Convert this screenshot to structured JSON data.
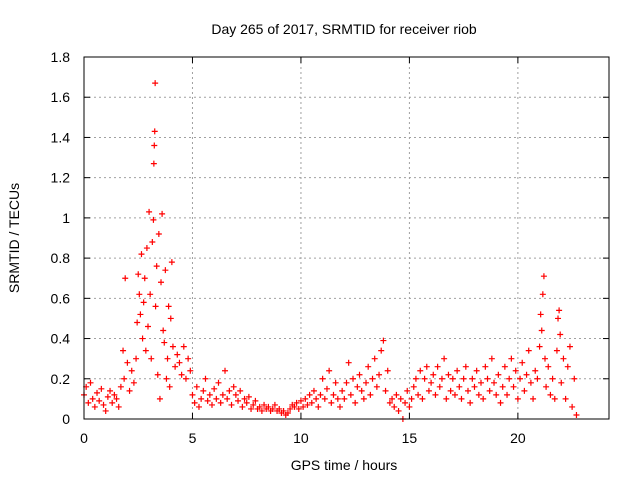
{
  "chart_data": {
    "type": "scatter",
    "title": "Day 265 of 2017, SRMTID for receiver riob",
    "xlabel": "GPS time / hours",
    "ylabel": "SRMTID / TECUs",
    "xlim": [
      0,
      24.2
    ],
    "ylim": [
      0,
      1.8
    ],
    "xticks": [
      0,
      5,
      10,
      15,
      20
    ],
    "yticks": [
      0,
      0.2,
      0.4,
      0.6,
      0.8,
      1,
      1.2,
      1.4,
      1.6,
      1.8
    ],
    "grid": true,
    "marker": "+",
    "color": "#ff0000",
    "series": [
      {
        "name": "SRMTID",
        "points": [
          [
            0.0,
            0.12
          ],
          [
            0.1,
            0.16
          ],
          [
            0.2,
            0.08
          ],
          [
            0.3,
            0.18
          ],
          [
            0.4,
            0.1
          ],
          [
            0.5,
            0.06
          ],
          [
            0.6,
            0.13
          ],
          [
            0.7,
            0.09
          ],
          [
            0.8,
            0.15
          ],
          [
            0.9,
            0.07
          ],
          [
            1.0,
            0.04
          ],
          [
            1.1,
            0.11
          ],
          [
            1.2,
            0.14
          ],
          [
            1.3,
            0.08
          ],
          [
            1.4,
            0.12
          ],
          [
            1.5,
            0.1
          ],
          [
            1.6,
            0.06
          ],
          [
            1.7,
            0.16
          ],
          [
            1.8,
            0.34
          ],
          [
            1.85,
            0.2
          ],
          [
            1.9,
            0.7
          ],
          [
            2.0,
            0.28
          ],
          [
            2.1,
            0.14
          ],
          [
            2.2,
            0.24
          ],
          [
            2.3,
            0.18
          ],
          [
            2.4,
            0.3
          ],
          [
            2.45,
            0.48
          ],
          [
            2.5,
            0.72
          ],
          [
            2.55,
            0.62
          ],
          [
            2.6,
            0.52
          ],
          [
            2.65,
            0.82
          ],
          [
            2.7,
            0.4
          ],
          [
            2.75,
            0.58
          ],
          [
            2.8,
            0.7
          ],
          [
            2.85,
            0.34
          ],
          [
            2.9,
            0.85
          ],
          [
            2.95,
            0.46
          ],
          [
            3.0,
            1.03
          ],
          [
            3.05,
            0.62
          ],
          [
            3.1,
            0.3
          ],
          [
            3.15,
            0.88
          ],
          [
            3.2,
            0.99
          ],
          [
            3.22,
            1.27
          ],
          [
            3.24,
            1.36
          ],
          [
            3.26,
            1.43
          ],
          [
            3.28,
            1.67
          ],
          [
            3.3,
            0.56
          ],
          [
            3.35,
            0.76
          ],
          [
            3.4,
            0.22
          ],
          [
            3.45,
            0.92
          ],
          [
            3.5,
            0.1
          ],
          [
            3.55,
            0.68
          ],
          [
            3.6,
            1.02
          ],
          [
            3.65,
            0.44
          ],
          [
            3.7,
            0.38
          ],
          [
            3.75,
            0.74
          ],
          [
            3.8,
            0.2
          ],
          [
            3.85,
            0.3
          ],
          [
            3.9,
            0.56
          ],
          [
            3.95,
            0.16
          ],
          [
            4.0,
            0.5
          ],
          [
            4.05,
            0.78
          ],
          [
            4.1,
            0.36
          ],
          [
            4.2,
            0.26
          ],
          [
            4.3,
            0.32
          ],
          [
            4.4,
            0.28
          ],
          [
            4.5,
            0.22
          ],
          [
            4.6,
            0.36
          ],
          [
            4.7,
            0.2
          ],
          [
            4.8,
            0.3
          ],
          [
            4.9,
            0.24
          ],
          [
            5.0,
            0.12
          ],
          [
            5.1,
            0.08
          ],
          [
            5.2,
            0.16
          ],
          [
            5.3,
            0.06
          ],
          [
            5.4,
            0.1
          ],
          [
            5.5,
            0.14
          ],
          [
            5.6,
            0.2
          ],
          [
            5.7,
            0.09
          ],
          [
            5.8,
            0.12
          ],
          [
            5.9,
            0.07
          ],
          [
            6.0,
            0.15
          ],
          [
            6.1,
            0.1
          ],
          [
            6.2,
            0.18
          ],
          [
            6.3,
            0.08
          ],
          [
            6.4,
            0.12
          ],
          [
            6.5,
            0.24
          ],
          [
            6.6,
            0.1
          ],
          [
            6.7,
            0.14
          ],
          [
            6.8,
            0.07
          ],
          [
            6.9,
            0.16
          ],
          [
            7.0,
            0.12
          ],
          [
            7.1,
            0.09
          ],
          [
            7.2,
            0.14
          ],
          [
            7.3,
            0.06
          ],
          [
            7.4,
            0.1
          ],
          [
            7.5,
            0.08
          ],
          [
            7.6,
            0.11
          ],
          [
            7.7,
            0.05
          ],
          [
            7.8,
            0.07
          ],
          [
            7.9,
            0.09
          ],
          [
            8.0,
            0.05
          ],
          [
            8.1,
            0.06
          ],
          [
            8.2,
            0.04
          ],
          [
            8.3,
            0.07
          ],
          [
            8.4,
            0.05
          ],
          [
            8.5,
            0.06
          ],
          [
            8.6,
            0.04
          ],
          [
            8.7,
            0.05
          ],
          [
            8.8,
            0.07
          ],
          [
            8.9,
            0.04
          ],
          [
            9.0,
            0.05
          ],
          [
            9.1,
            0.03
          ],
          [
            9.2,
            0.04
          ],
          [
            9.3,
            0.02
          ],
          [
            9.4,
            0.03
          ],
          [
            9.5,
            0.05
          ],
          [
            9.6,
            0.07
          ],
          [
            9.7,
            0.06
          ],
          [
            9.8,
            0.08
          ],
          [
            9.9,
            0.05
          ],
          [
            10.0,
            0.09
          ],
          [
            10.1,
            0.06
          ],
          [
            10.2,
            0.1
          ],
          [
            10.3,
            0.07
          ],
          [
            10.4,
            0.12
          ],
          [
            10.5,
            0.08
          ],
          [
            10.6,
            0.14
          ],
          [
            10.7,
            0.1
          ],
          [
            10.8,
            0.06
          ],
          [
            10.9,
            0.12
          ],
          [
            11.0,
            0.2
          ],
          [
            11.1,
            0.1
          ],
          [
            11.2,
            0.15
          ],
          [
            11.3,
            0.24
          ],
          [
            11.4,
            0.08
          ],
          [
            11.5,
            0.12
          ],
          [
            11.6,
            0.18
          ],
          [
            11.7,
            0.1
          ],
          [
            11.8,
            0.06
          ],
          [
            11.9,
            0.14
          ],
          [
            12.0,
            0.1
          ],
          [
            12.1,
            0.18
          ],
          [
            12.2,
            0.28
          ],
          [
            12.3,
            0.12
          ],
          [
            12.4,
            0.2
          ],
          [
            12.5,
            0.08
          ],
          [
            12.6,
            0.16
          ],
          [
            12.7,
            0.22
          ],
          [
            12.8,
            0.14
          ],
          [
            12.9,
            0.1
          ],
          [
            13.0,
            0.18
          ],
          [
            13.1,
            0.26
          ],
          [
            13.2,
            0.12
          ],
          [
            13.3,
            0.2
          ],
          [
            13.4,
            0.3
          ],
          [
            13.5,
            0.16
          ],
          [
            13.6,
            0.22
          ],
          [
            13.7,
            0.34
          ],
          [
            13.8,
            0.39
          ],
          [
            13.9,
            0.14
          ],
          [
            14.0,
            0.24
          ],
          [
            14.1,
            0.08
          ],
          [
            14.2,
            0.1
          ],
          [
            14.3,
            0.06
          ],
          [
            14.4,
            0.12
          ],
          [
            14.5,
            0.04
          ],
          [
            14.6,
            0.1
          ],
          [
            14.7,
            0.0
          ],
          [
            14.8,
            0.08
          ],
          [
            14.9,
            0.14
          ],
          [
            15.0,
            0.06
          ],
          [
            15.1,
            0.1
          ],
          [
            15.2,
            0.16
          ],
          [
            15.3,
            0.2
          ],
          [
            15.4,
            0.12
          ],
          [
            15.5,
            0.24
          ],
          [
            15.6,
            0.1
          ],
          [
            15.7,
            0.2
          ],
          [
            15.8,
            0.26
          ],
          [
            15.9,
            0.14
          ],
          [
            16.0,
            0.18
          ],
          [
            16.1,
            0.22
          ],
          [
            16.2,
            0.12
          ],
          [
            16.3,
            0.26
          ],
          [
            16.4,
            0.16
          ],
          [
            16.5,
            0.2
          ],
          [
            16.6,
            0.3
          ],
          [
            16.7,
            0.1
          ],
          [
            16.8,
            0.22
          ],
          [
            16.9,
            0.14
          ],
          [
            17.0,
            0.2
          ],
          [
            17.1,
            0.12
          ],
          [
            17.2,
            0.24
          ],
          [
            17.3,
            0.16
          ],
          [
            17.4,
            0.1
          ],
          [
            17.5,
            0.2
          ],
          [
            17.6,
            0.26
          ],
          [
            17.7,
            0.14
          ],
          [
            17.8,
            0.08
          ],
          [
            17.9,
            0.2
          ],
          [
            18.0,
            0.16
          ],
          [
            18.1,
            0.24
          ],
          [
            18.2,
            0.12
          ],
          [
            18.3,
            0.18
          ],
          [
            18.4,
            0.1
          ],
          [
            18.5,
            0.26
          ],
          [
            18.6,
            0.2
          ],
          [
            18.7,
            0.14
          ],
          [
            18.8,
            0.3
          ],
          [
            18.9,
            0.18
          ],
          [
            19.0,
            0.12
          ],
          [
            19.1,
            0.22
          ],
          [
            19.2,
            0.08
          ],
          [
            19.3,
            0.16
          ],
          [
            19.4,
            0.26
          ],
          [
            19.5,
            0.12
          ],
          [
            19.6,
            0.2
          ],
          [
            19.7,
            0.3
          ],
          [
            19.8,
            0.16
          ],
          [
            19.9,
            0.24
          ],
          [
            20.0,
            0.1
          ],
          [
            20.1,
            0.2
          ],
          [
            20.2,
            0.28
          ],
          [
            20.3,
            0.14
          ],
          [
            20.4,
            0.22
          ],
          [
            20.5,
            0.34
          ],
          [
            20.6,
            0.18
          ],
          [
            20.7,
            0.1
          ],
          [
            20.8,
            0.24
          ],
          [
            20.9,
            0.2
          ],
          [
            21.0,
            0.36
          ],
          [
            21.05,
            0.52
          ],
          [
            21.1,
            0.44
          ],
          [
            21.15,
            0.62
          ],
          [
            21.2,
            0.71
          ],
          [
            21.25,
            0.3
          ],
          [
            21.3,
            0.16
          ],
          [
            21.4,
            0.26
          ],
          [
            21.5,
            0.12
          ],
          [
            21.6,
            0.2
          ],
          [
            21.7,
            0.1
          ],
          [
            21.8,
            0.34
          ],
          [
            21.85,
            0.5
          ],
          [
            21.9,
            0.54
          ],
          [
            21.95,
            0.42
          ],
          [
            22.0,
            0.18
          ],
          [
            22.1,
            0.3
          ],
          [
            22.2,
            0.1
          ],
          [
            22.3,
            0.26
          ],
          [
            22.4,
            0.36
          ],
          [
            22.5,
            0.06
          ],
          [
            22.6,
            0.2
          ],
          [
            22.7,
            0.02
          ]
        ]
      }
    ]
  }
}
